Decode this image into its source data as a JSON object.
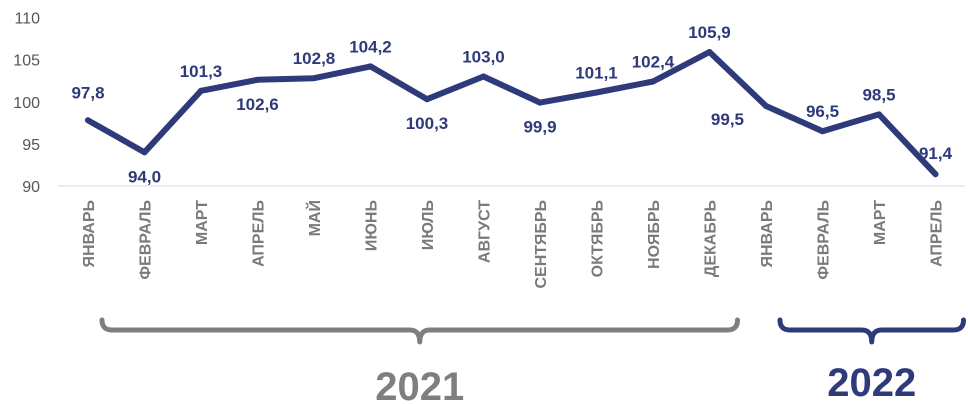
{
  "chart_data": {
    "type": "line",
    "ylim": [
      90,
      110
    ],
    "yticks": [
      90,
      95,
      100,
      105,
      110
    ],
    "grid": false,
    "categories": [
      "ЯНВАРЬ",
      "ФЕВРАЛЬ",
      "МАРТ",
      "АПРЕЛЬ",
      "МАЙ",
      "ИЮНЬ",
      "ИЮЛЬ",
      "АВГУСТ",
      "СЕНТЯБРЬ",
      "ОКТЯБРЬ",
      "НОЯБРЬ",
      "ДЕКАБРЬ",
      "ЯНВАРЬ",
      "ФЕВРАЛЬ",
      "МАРТ",
      "АПРЕЛЬ"
    ],
    "series": [
      {
        "values": [
          97.8,
          94.0,
          101.3,
          102.6,
          102.8,
          104.2,
          100.3,
          103.0,
          99.9,
          101.1,
          102.4,
          105.9,
          99.5,
          96.5,
          98.5,
          91.4
        ],
        "labels": [
          "97,8",
          "94,0",
          "101,3",
          "102,6",
          "102,8",
          "104,2",
          "100,3",
          "103,0",
          "99,9",
          "101,1",
          "102,4",
          "105,9",
          "99,5",
          "96,5",
          "98,5",
          "91,4"
        ],
        "color": "#2e3a7a"
      }
    ],
    "groups": [
      {
        "label": "2021",
        "from": 0,
        "to": 11,
        "color": "#7f7f7f"
      },
      {
        "label": "2022",
        "from": 12,
        "to": 15,
        "color": "#2e3a7a"
      }
    ]
  }
}
